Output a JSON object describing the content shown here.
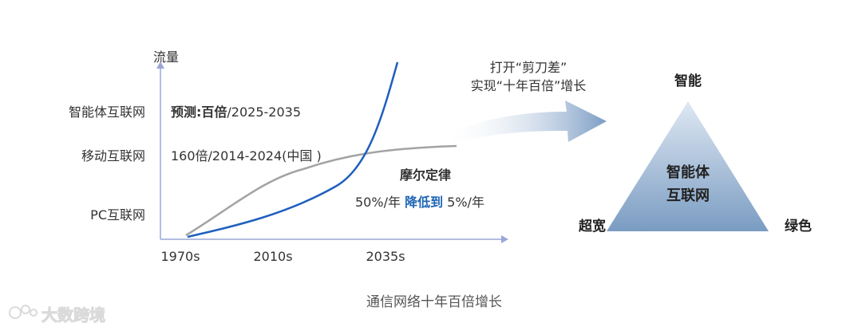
{
  "chart": {
    "y_axis_label": "流量",
    "y_categories": [
      "智能体互联网",
      "移动互联网",
      "PC互联网"
    ],
    "x_ticks": [
      "1970s",
      "2010s",
      "2035s"
    ],
    "annotations": {
      "ai_prefix": "预测:百倍",
      "ai_suffix": "/2025-2035",
      "mobile": "160倍/2014-2024(中国 )",
      "moore_title": "摩尔定律",
      "moore_part1": "50%/年",
      "moore_part2": "降低到",
      "moore_part3": "5%/年"
    }
  },
  "arrow_label": {
    "line1": "打开“剪刀差”",
    "line2": "实现“十年百倍”增长"
  },
  "triangle": {
    "top": "智能",
    "left": "超宽",
    "right": "绿色",
    "center_line1": "智能体",
    "center_line2": "互联网"
  },
  "caption": "通信网络十年百倍增长",
  "watermark": "大数跨境",
  "colors": {
    "axis": "#9aa7d6",
    "blue_curve": "#1f5fbf",
    "gray_curve": "#a3a3a3",
    "highlight": "#1f66b5",
    "triangle_top": "#d9e4f1",
    "triangle_bottom": "#7f9fc2"
  }
}
